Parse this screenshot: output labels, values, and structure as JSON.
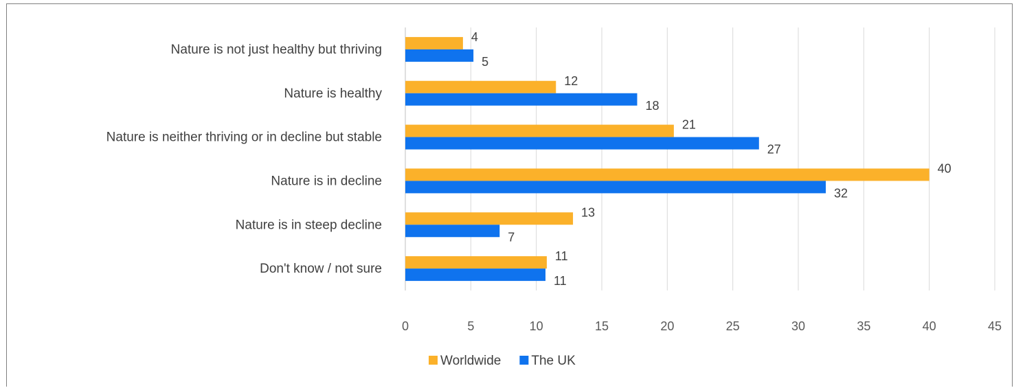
{
  "chart_data": {
    "type": "bar",
    "orientation": "horizontal",
    "categories": [
      "Nature is not just healthy but thriving",
      "Nature is healthy",
      "Nature is neither thriving or in decline but stable",
      "Nature is in decline",
      "Nature is in steep decline",
      "Don't know / not sure"
    ],
    "series": [
      {
        "name": "Worldwide",
        "values": [
          4.4,
          11.5,
          20.5,
          40,
          12.8,
          10.8
        ],
        "labels": [
          "4",
          "12",
          "21",
          "40",
          "13",
          "11"
        ],
        "color": "#fbb12a"
      },
      {
        "name": "The UK",
        "values": [
          5.2,
          17.7,
          27,
          32.1,
          7.2,
          10.7
        ],
        "labels": [
          "5",
          "18",
          "27",
          "32",
          "7",
          "11"
        ],
        "color": "#0f73ee"
      }
    ],
    "xlim": [
      0,
      45
    ],
    "xticks": [
      "0",
      "5",
      "10",
      "15",
      "20",
      "25",
      "30",
      "35",
      "40",
      "45"
    ],
    "grid": true,
    "legend_position": "bottom"
  }
}
